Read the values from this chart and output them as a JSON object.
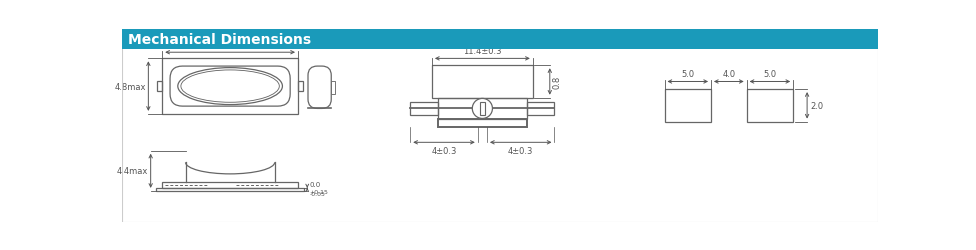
{
  "title": "Mechanical Dimensions",
  "title_bg": "#1a9aba",
  "title_color": "#ffffff",
  "line_color": "#666666",
  "dim_color": "#555555",
  "bg_color": "#ffffff",
  "border_color": "#aaaaaa"
}
